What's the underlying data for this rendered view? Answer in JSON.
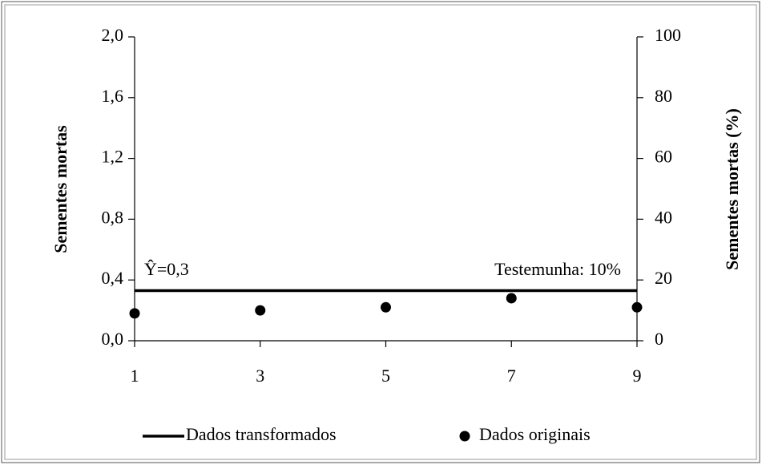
{
  "chart_data": {
    "type": "line_scatter",
    "ylabel": "Sementes mortas",
    "y2label": "Sementes mortas (%)",
    "x": [
      1,
      3,
      5,
      7,
      9
    ],
    "series": [
      {
        "name": "Dados transformados",
        "type": "line",
        "color": "#000000",
        "values": [
          0.33,
          0.33,
          0.33,
          0.33,
          0.33
        ]
      },
      {
        "name": "Dados originais",
        "type": "scatter",
        "axis": "y2",
        "color": "#000000",
        "values": [
          9,
          10,
          11,
          14,
          11
        ]
      }
    ],
    "annotations": [
      "Ŷ=0,3",
      "Testemunha: 10%"
    ],
    "xlim": [
      1,
      9
    ],
    "xticks": [
      1,
      3,
      5,
      7,
      9
    ],
    "ylim": [
      0,
      2
    ],
    "yticks": [
      {
        "value": 0,
        "label": "0,0"
      },
      {
        "value": 0.4,
        "label": "0,4"
      },
      {
        "value": 0.8,
        "label": "0,8"
      },
      {
        "value": 1.2,
        "label": "1,2"
      },
      {
        "value": 1.6,
        "label": "1,6"
      },
      {
        "value": 2,
        "label": "2,0"
      }
    ],
    "y2lim": [
      0,
      100
    ],
    "y2ticks": [
      0,
      20,
      40,
      60,
      80,
      100
    ],
    "legend": "bottom"
  }
}
